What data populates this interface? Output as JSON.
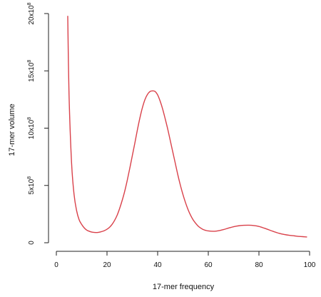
{
  "chart_data": {
    "type": "line",
    "title": "",
    "xlabel": "17-mer frequency",
    "ylabel": "17-mer volume",
    "xlim": [
      0,
      100
    ],
    "ylim": [
      0,
      2000000000
    ],
    "xticks": [
      0,
      20,
      40,
      60,
      80,
      100
    ],
    "xtick_labels": [
      "0",
      "20",
      "40",
      "60",
      "80",
      "100"
    ],
    "yticks": [
      0,
      500000000,
      1000000000,
      1500000000,
      2000000000
    ],
    "ytick_labels": [
      {
        "mantissa": "0",
        "exp": ""
      },
      {
        "mantissa": "5x10",
        "exp": "8"
      },
      {
        "mantissa": "10x10",
        "exp": "8"
      },
      {
        "mantissa": "15x10",
        "exp": "8"
      },
      {
        "mantissa": "20x10",
        "exp": "8"
      }
    ],
    "grid": false,
    "line_color": "#d9414a",
    "series": [
      {
        "x": [
          4.5,
          5,
          6,
          7,
          8,
          9,
          10,
          11,
          12,
          13,
          14,
          15,
          16,
          17,
          18,
          19,
          20,
          21,
          22,
          23,
          24,
          25,
          26,
          27,
          28,
          29,
          30,
          31,
          32,
          33,
          34,
          35,
          36,
          37,
          38,
          39,
          40,
          41,
          42,
          43,
          44,
          45,
          46,
          47,
          48,
          49,
          50,
          51,
          52,
          53,
          54,
          55,
          56,
          57,
          58,
          59,
          60,
          62,
          64,
          66,
          68,
          70,
          72,
          74,
          76,
          78,
          80,
          82,
          84,
          86,
          88,
          90,
          92,
          94,
          96,
          98,
          99
        ],
        "values": [
          1980000000,
          1300000000,
          700000000,
          420000000,
          280000000,
          200000000,
          160000000,
          130000000,
          110000000,
          100000000,
          93000000,
          90000000,
          89000000,
          92000000,
          98000000,
          106000000,
          118000000,
          135000000,
          160000000,
          195000000,
          240000000,
          300000000,
          370000000,
          450000000,
          545000000,
          650000000,
          760000000,
          870000000,
          985000000,
          1090000000,
          1180000000,
          1250000000,
          1295000000,
          1320000000,
          1325000000,
          1320000000,
          1290000000,
          1235000000,
          1165000000,
          1080000000,
          990000000,
          890000000,
          790000000,
          690000000,
          590000000,
          500000000,
          420000000,
          350000000,
          290000000,
          240000000,
          200000000,
          170000000,
          145000000,
          128000000,
          115000000,
          108000000,
          103000000,
          100000000,
          105000000,
          115000000,
          128000000,
          140000000,
          148000000,
          152000000,
          153000000,
          150000000,
          142000000,
          128000000,
          112000000,
          96000000,
          82000000,
          72000000,
          65000000,
          60000000,
          55000000,
          52000000,
          50000000
        ]
      }
    ]
  }
}
